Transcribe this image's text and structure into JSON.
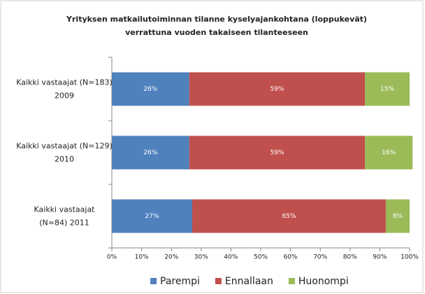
{
  "chart_data": {
    "type": "stacked_barh",
    "title": "Yrityksen matkailutoiminnan tilanne kyselyajankohtana (loppukevät) verrattuna vuoden takaiseen tilanteeseen",
    "categories": [
      [
        "Kaikki vastaajat (N=183)",
        "2009"
      ],
      [
        "Kaikki vastaajat (N=129)",
        "2010"
      ],
      [
        "Kaikki vastaajat",
        "(N=84)  2011"
      ]
    ],
    "series": [
      {
        "name": "Parempi",
        "color": "#4f81bd",
        "values": [
          26,
          26,
          27
        ],
        "value_labels": [
          "26%",
          "26%",
          "27%"
        ]
      },
      {
        "name": "Ennallaan",
        "color": "#c0504d",
        "values": [
          59,
          59,
          65
        ],
        "value_labels": [
          "59%",
          "59%",
          "65%"
        ]
      },
      {
        "name": "Huonompi",
        "color": "#9bbb59",
        "values": [
          15,
          16,
          8
        ],
        "value_labels": [
          "15%",
          "16%",
          "8%"
        ]
      }
    ],
    "xlim": [
      0,
      100
    ],
    "xticks": [
      {
        "value": 0,
        "label": "0%"
      },
      {
        "value": 10,
        "label": "10%"
      },
      {
        "value": 20,
        "label": "20%"
      },
      {
        "value": 30,
        "label": "30%"
      },
      {
        "value": 40,
        "label": "40%"
      },
      {
        "value": 50,
        "label": "50%"
      },
      {
        "value": 60,
        "label": "60%"
      },
      {
        "value": 70,
        "label": "70%"
      },
      {
        "value": 80,
        "label": "80%"
      },
      {
        "value": 90,
        "label": "90%"
      },
      {
        "value": 100,
        "label": "100%"
      }
    ],
    "legend": "bottom"
  }
}
